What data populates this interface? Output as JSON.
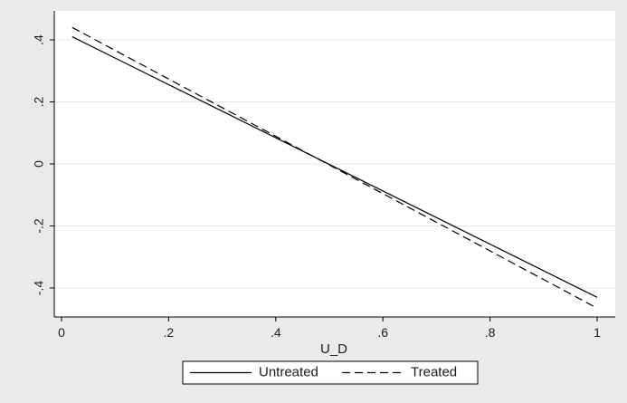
{
  "chart_data": {
    "type": "line",
    "xlabel": "U_D",
    "ylabel": "",
    "xlim": [
      0,
      1
    ],
    "ylim": [
      -0.5,
      0.42
    ],
    "x_ticks": [
      0,
      0.2,
      0.4,
      0.6,
      0.8,
      1
    ],
    "x_tick_labels": [
      "0",
      ".2",
      ".4",
      ".6",
      ".8",
      "1"
    ],
    "y_ticks": [
      -0.4,
      -0.2,
      0,
      0.2,
      0.4
    ],
    "y_tick_labels": [
      "-.4",
      "-.2",
      "0",
      ".2",
      ".4"
    ],
    "grid": "horizontal",
    "legend_position": "bottom",
    "series": [
      {
        "name": "Untreated",
        "style": "solid",
        "color": "#000000",
        "x": [
          0.02,
          1.0
        ],
        "y": [
          0.41,
          -0.43
        ]
      },
      {
        "name": "Treated",
        "style": "dashed",
        "color": "#000000",
        "x": [
          0.02,
          1.0
        ],
        "y": [
          0.44,
          -0.465
        ]
      }
    ]
  },
  "colors": {
    "page_background": "#eaeaea",
    "plot_background": "#ffffff",
    "grid": "#e4e4e4",
    "axis": "#000000"
  }
}
